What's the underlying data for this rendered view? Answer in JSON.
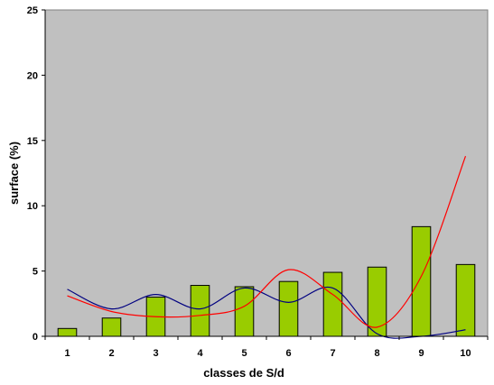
{
  "chart_data": {
    "type": "bar",
    "title": "",
    "xlabel": "classes de S/d",
    "ylabel": "surface (%)",
    "categories": [
      "1",
      "2",
      "3",
      "4",
      "5",
      "6",
      "7",
      "8",
      "9",
      "10"
    ],
    "ylim": [
      0,
      25
    ],
    "yticks": [
      "0",
      "5",
      "10",
      "15",
      "20",
      "25"
    ],
    "grid": false,
    "legend": "none",
    "plot_background": "#C0C0C0",
    "series": [
      {
        "type": "bar",
        "values": [
          0.6,
          1.4,
          3.0,
          3.9,
          3.8,
          4.2,
          4.9,
          5.3,
          8.4,
          5.5
        ],
        "color": "#99CC00"
      },
      {
        "type": "line",
        "values": [
          3.6,
          2.1,
          3.2,
          2.1,
          3.7,
          2.6,
          3.7,
          0.2,
          0.0,
          0.5
        ],
        "color": "#000080"
      },
      {
        "type": "line",
        "values": [
          3.1,
          1.9,
          1.5,
          1.6,
          2.3,
          5.1,
          3.2,
          0.7,
          4.6,
          13.8
        ],
        "color": "#FF0000"
      }
    ]
  }
}
